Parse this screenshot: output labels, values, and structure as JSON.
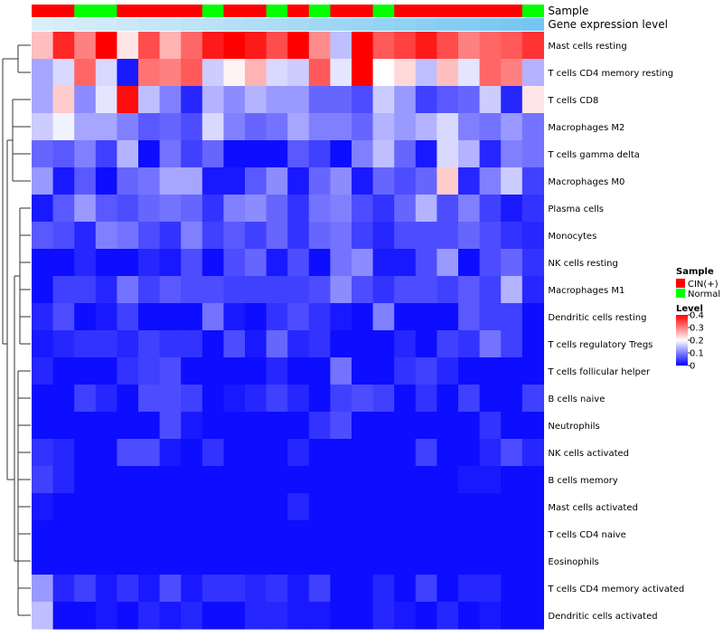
{
  "chart_data": {
    "type": "heatmap",
    "title": "",
    "xlabel": "",
    "ylabel": "",
    "annotation_tracks": [
      {
        "label": "Sample",
        "values": [
          "CIN(+)",
          "CIN(+)",
          "Normal",
          "Normal",
          "CIN(+)",
          "CIN(+)",
          "CIN(+)",
          "CIN(+)",
          "Normal",
          "CIN(+)",
          "CIN(+)",
          "Normal",
          "CIN(+)",
          "Normal",
          "CIN(+)",
          "CIN(+)",
          "Normal",
          "CIN(+)",
          "CIN(+)",
          "CIN(+)",
          "CIN(+)",
          "CIN(+)",
          "CIN(+)",
          "Normal"
        ]
      },
      {
        "label": "Gene expression level",
        "values": [
          0.05,
          0.08,
          0.1,
          0.13,
          0.16,
          0.2,
          0.23,
          0.27,
          0.3,
          0.34,
          0.37,
          0.41,
          0.44,
          0.48,
          0.52,
          0.55,
          0.59,
          0.62,
          0.66,
          0.7,
          0.73,
          0.77,
          0.81,
          0.85
        ]
      }
    ],
    "rows": [
      "Mast cells resting",
      "T cells CD4 memory resting",
      "T cells CD8",
      "Macrophages M2",
      "T cells gamma delta",
      "Macrophages M0",
      "Plasma cells",
      "Monocytes",
      "NK cells resting",
      "Macrophages M1",
      "Dendritic cells resting",
      "T cells regulatory  Tregs",
      "T cells follicular helper",
      "B cells naive",
      "Neutrophils",
      "NK cells activated",
      "B cells memory",
      "Mast cells activated",
      "T cells CD4 naive",
      "Eosinophils",
      "T cells CD4 memory activated",
      "Dendritic cells activated"
    ],
    "values": [
      [
        0.25,
        0.37,
        0.3,
        0.4,
        0.22,
        0.34,
        0.26,
        0.32,
        0.38,
        0.4,
        0.38,
        0.34,
        0.4,
        0.29,
        0.15,
        0.4,
        0.33,
        0.35,
        0.38,
        0.34,
        0.3,
        0.32,
        0.33,
        0.36
      ],
      [
        0.13,
        0.17,
        0.32,
        0.17,
        0.02,
        0.31,
        0.3,
        0.33,
        0.16,
        0.21,
        0.26,
        0.17,
        0.16,
        0.33,
        0.18,
        0.4,
        0.2,
        0.23,
        0.15,
        0.25,
        0.18,
        0.32,
        0.3,
        0.14
      ],
      [
        0.13,
        0.24,
        0.11,
        0.18,
        0.39,
        0.15,
        0.1,
        0.03,
        0.14,
        0.11,
        0.14,
        0.12,
        0.12,
        0.08,
        0.08,
        0.06,
        0.16,
        0.12,
        0.05,
        0.07,
        0.08,
        0.16,
        0.03,
        0.22
      ],
      [
        0.16,
        0.19,
        0.13,
        0.13,
        0.1,
        0.07,
        0.08,
        0.06,
        0.17,
        0.1,
        0.08,
        0.09,
        0.13,
        0.1,
        0.1,
        0.08,
        0.14,
        0.12,
        0.14,
        0.17,
        0.1,
        0.09,
        0.12,
        0.09
      ],
      [
        0.08,
        0.07,
        0.1,
        0.05,
        0.14,
        0.01,
        0.09,
        0.05,
        0.08,
        0.01,
        0.01,
        0.01,
        0.07,
        0.05,
        0.01,
        0.1,
        0.15,
        0.08,
        0.02,
        0.17,
        0.14,
        0.03,
        0.1,
        0.09
      ],
      [
        0.12,
        0.02,
        0.07,
        0.01,
        0.08,
        0.09,
        0.13,
        0.13,
        0.02,
        0.02,
        0.07,
        0.11,
        0.02,
        0.08,
        0.11,
        0.02,
        0.08,
        0.06,
        0.08,
        0.24,
        0.03,
        0.1,
        0.16,
        0.05
      ],
      [
        0.02,
        0.07,
        0.12,
        0.07,
        0.06,
        0.08,
        0.09,
        0.08,
        0.04,
        0.1,
        0.11,
        0.08,
        0.04,
        0.09,
        0.1,
        0.06,
        0.04,
        0.08,
        0.14,
        0.06,
        0.1,
        0.05,
        0.02,
        0.04
      ],
      [
        0.07,
        0.06,
        0.03,
        0.1,
        0.09,
        0.06,
        0.04,
        0.1,
        0.05,
        0.07,
        0.05,
        0.08,
        0.04,
        0.08,
        0.09,
        0.05,
        0.03,
        0.06,
        0.06,
        0.06,
        0.08,
        0.06,
        0.04,
        0.03
      ],
      [
        0.01,
        0.01,
        0.03,
        0.01,
        0.01,
        0.03,
        0.02,
        0.06,
        0.01,
        0.06,
        0.08,
        0.02,
        0.06,
        0.01,
        0.09,
        0.11,
        0.02,
        0.02,
        0.06,
        0.12,
        0.01,
        0.06,
        0.08,
        0.04
      ],
      [
        0.01,
        0.05,
        0.05,
        0.03,
        0.09,
        0.05,
        0.07,
        0.06,
        0.06,
        0.05,
        0.05,
        0.05,
        0.05,
        0.06,
        0.11,
        0.06,
        0.04,
        0.06,
        0.06,
        0.05,
        0.07,
        0.05,
        0.14,
        0.03
      ],
      [
        0.03,
        0.06,
        0.01,
        0.02,
        0.05,
        0.01,
        0.01,
        0.01,
        0.09,
        0.02,
        0.01,
        0.04,
        0.06,
        0.04,
        0.02,
        0.01,
        0.1,
        0.01,
        0.01,
        0.01,
        0.07,
        0.05,
        0.05,
        0.01
      ],
      [
        0.02,
        0.03,
        0.04,
        0.04,
        0.03,
        0.05,
        0.04,
        0.04,
        0.01,
        0.06,
        0.02,
        0.08,
        0.03,
        0.04,
        0.01,
        0.01,
        0.01,
        0.03,
        0.01,
        0.05,
        0.04,
        0.09,
        0.05,
        0.01
      ],
      [
        0.03,
        0.01,
        0.01,
        0.01,
        0.04,
        0.05,
        0.06,
        0.01,
        0.01,
        0.01,
        0.01,
        0.03,
        0.01,
        0.01,
        0.09,
        0.01,
        0.01,
        0.04,
        0.05,
        0.03,
        0.01,
        0.01,
        0.01,
        0.01
      ],
      [
        0.01,
        0.01,
        0.05,
        0.03,
        0.01,
        0.06,
        0.06,
        0.05,
        0.01,
        0.02,
        0.03,
        0.05,
        0.03,
        0.01,
        0.05,
        0.06,
        0.05,
        0.01,
        0.04,
        0.01,
        0.05,
        0.01,
        0.01,
        0.05
      ],
      [
        0.01,
        0.01,
        0.01,
        0.01,
        0.01,
        0.01,
        0.06,
        0.02,
        0.01,
        0.01,
        0.01,
        0.01,
        0.01,
        0.04,
        0.06,
        0.01,
        0.01,
        0.01,
        0.01,
        0.01,
        0.01,
        0.04,
        0.01,
        0.01
      ],
      [
        0.04,
        0.03,
        0.01,
        0.01,
        0.06,
        0.06,
        0.02,
        0.01,
        0.04,
        0.01,
        0.01,
        0.01,
        0.03,
        0.01,
        0.01,
        0.01,
        0.01,
        0.01,
        0.05,
        0.01,
        0.01,
        0.03,
        0.06,
        0.03
      ],
      [
        0.05,
        0.03,
        0.01,
        0.01,
        0.01,
        0.01,
        0.01,
        0.01,
        0.01,
        0.01,
        0.01,
        0.01,
        0.01,
        0.01,
        0.01,
        0.01,
        0.01,
        0.01,
        0.01,
        0.01,
        0.02,
        0.02,
        0.01,
        0.01
      ],
      [
        0.02,
        0.01,
        0.01,
        0.01,
        0.01,
        0.01,
        0.01,
        0.01,
        0.01,
        0.01,
        0.01,
        0.01,
        0.03,
        0.01,
        0.01,
        0.01,
        0.01,
        0.01,
        0.01,
        0.01,
        0.01,
        0.01,
        0.01,
        0.01
      ],
      [
        0.01,
        0.01,
        0.01,
        0.01,
        0.01,
        0.01,
        0.01,
        0.01,
        0.01,
        0.01,
        0.01,
        0.01,
        0.01,
        0.01,
        0.01,
        0.01,
        0.01,
        0.01,
        0.01,
        0.01,
        0.01,
        0.01,
        0.01,
        0.01
      ],
      [
        0.01,
        0.01,
        0.01,
        0.01,
        0.01,
        0.01,
        0.01,
        0.01,
        0.01,
        0.01,
        0.01,
        0.01,
        0.01,
        0.01,
        0.01,
        0.01,
        0.01,
        0.01,
        0.01,
        0.01,
        0.01,
        0.01,
        0.01,
        0.01
      ],
      [
        0.12,
        0.03,
        0.05,
        0.02,
        0.04,
        0.02,
        0.06,
        0.02,
        0.04,
        0.04,
        0.03,
        0.04,
        0.02,
        0.05,
        0.01,
        0.01,
        0.03,
        0.01,
        0.05,
        0.01,
        0.03,
        0.03,
        0.01,
        0.01
      ],
      [
        0.15,
        0.01,
        0.01,
        0.02,
        0.01,
        0.03,
        0.02,
        0.03,
        0.01,
        0.01,
        0.03,
        0.03,
        0.02,
        0.02,
        0.01,
        0.01,
        0.03,
        0.02,
        0.01,
        0.03,
        0.01,
        0.02,
        0.01,
        0.01
      ]
    ],
    "color_scale": {
      "min": 0,
      "max": 0.4,
      "colors": [
        "#0000ff",
        "#ffffff",
        "#ff0000"
      ]
    },
    "legend_position": "right",
    "legends": [
      {
        "title": "Sample",
        "items": [
          {
            "label": "CIN(+)",
            "color": "#ff0000"
          },
          {
            "label": "Normal",
            "color": "#00ff00"
          }
        ]
      },
      {
        "title": "Level",
        "ticks": [
          "0.4",
          "0.3",
          "0.2",
          "0.1",
          "0"
        ],
        "tick_values": [
          0.4,
          0.3,
          0.2,
          0.1,
          0
        ]
      }
    ]
  }
}
